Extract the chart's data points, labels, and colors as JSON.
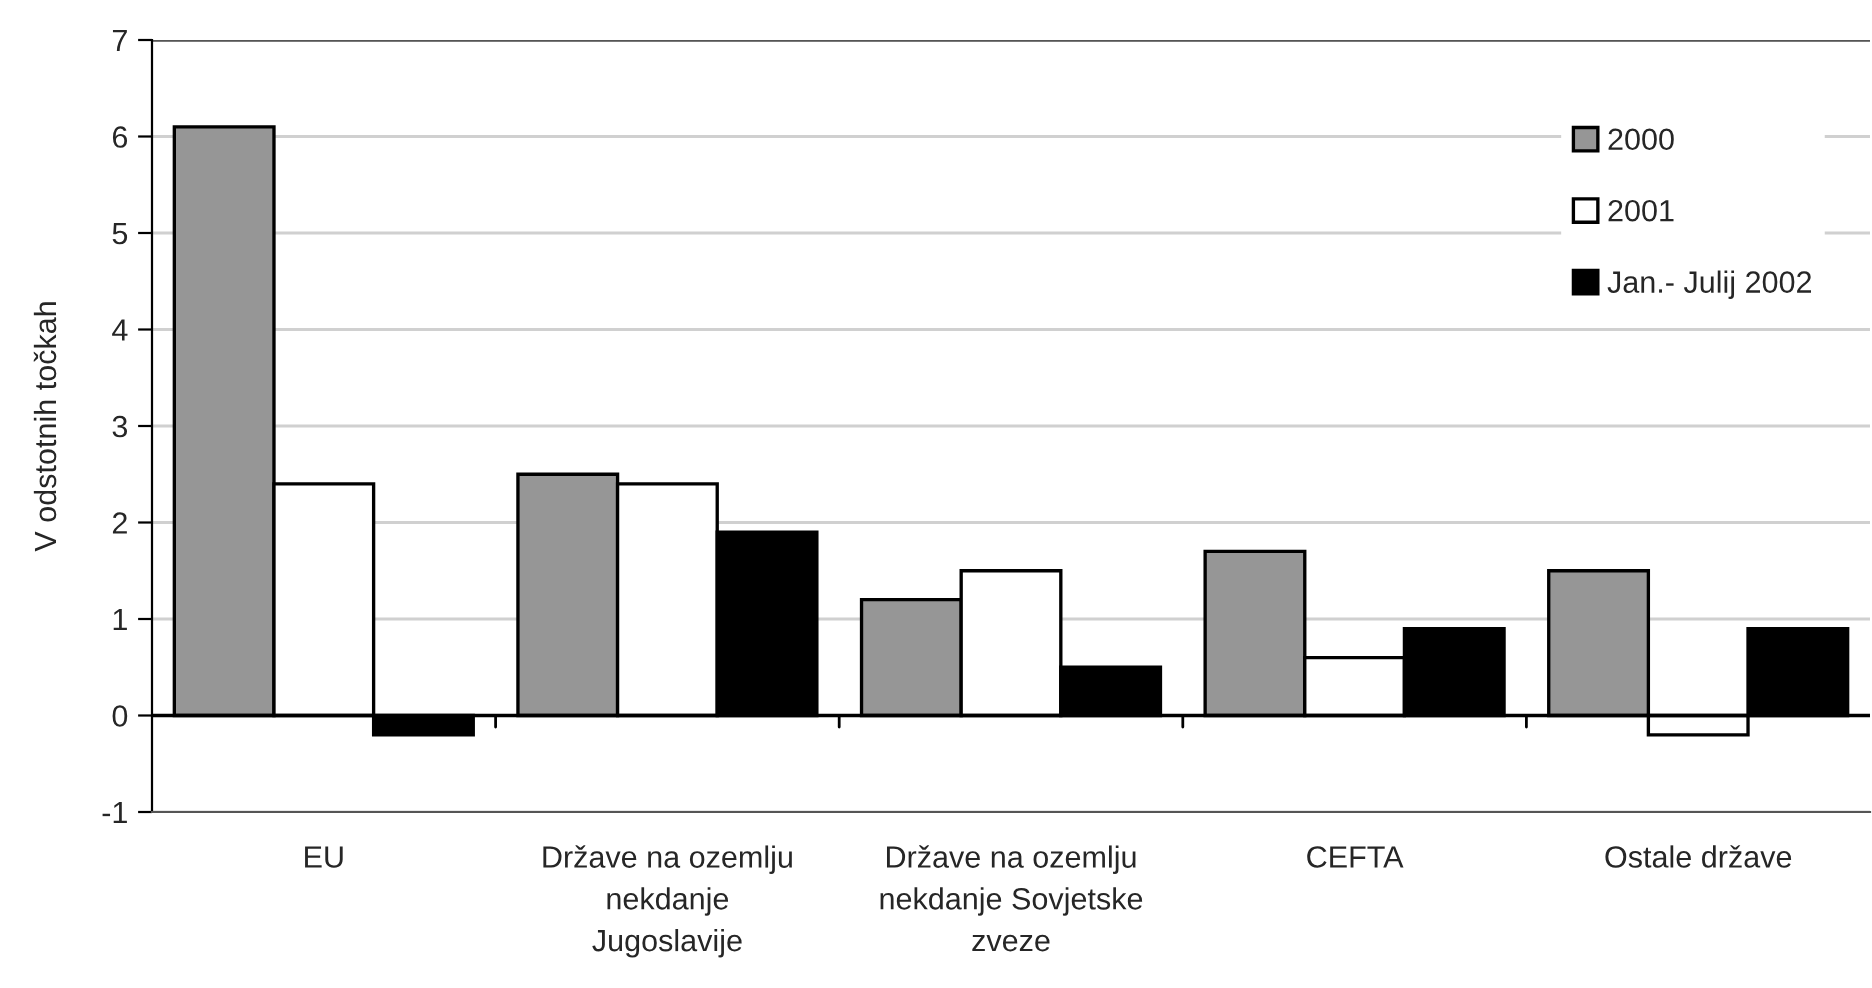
{
  "chart_data": {
    "type": "bar",
    "ylabel": "V odstotnih točkah",
    "categories": [
      "EU",
      "Države na ozemlju nekdanje Jugoslavije",
      "Države na ozemlju nekdanje Sovjetske zveze",
      "CEFTA",
      "Ostale države"
    ],
    "series": [
      {
        "name": "2000",
        "color": "#969696",
        "values": [
          6.1,
          2.5,
          1.2,
          1.7,
          1.5
        ]
      },
      {
        "name": "2001",
        "color": "#ffffff",
        "values": [
          2.4,
          2.4,
          1.5,
          0.6,
          -0.2
        ]
      },
      {
        "name": "Jan.- Julij 2002",
        "color": "#000000",
        "values": [
          -0.2,
          1.9,
          0.5,
          0.9,
          0.9
        ]
      }
    ],
    "ylim": [
      -1,
      7
    ],
    "yticks": [
      -1,
      0,
      1,
      2,
      3,
      4,
      5,
      6,
      7
    ],
    "grid": "y",
    "legend": "top right"
  }
}
